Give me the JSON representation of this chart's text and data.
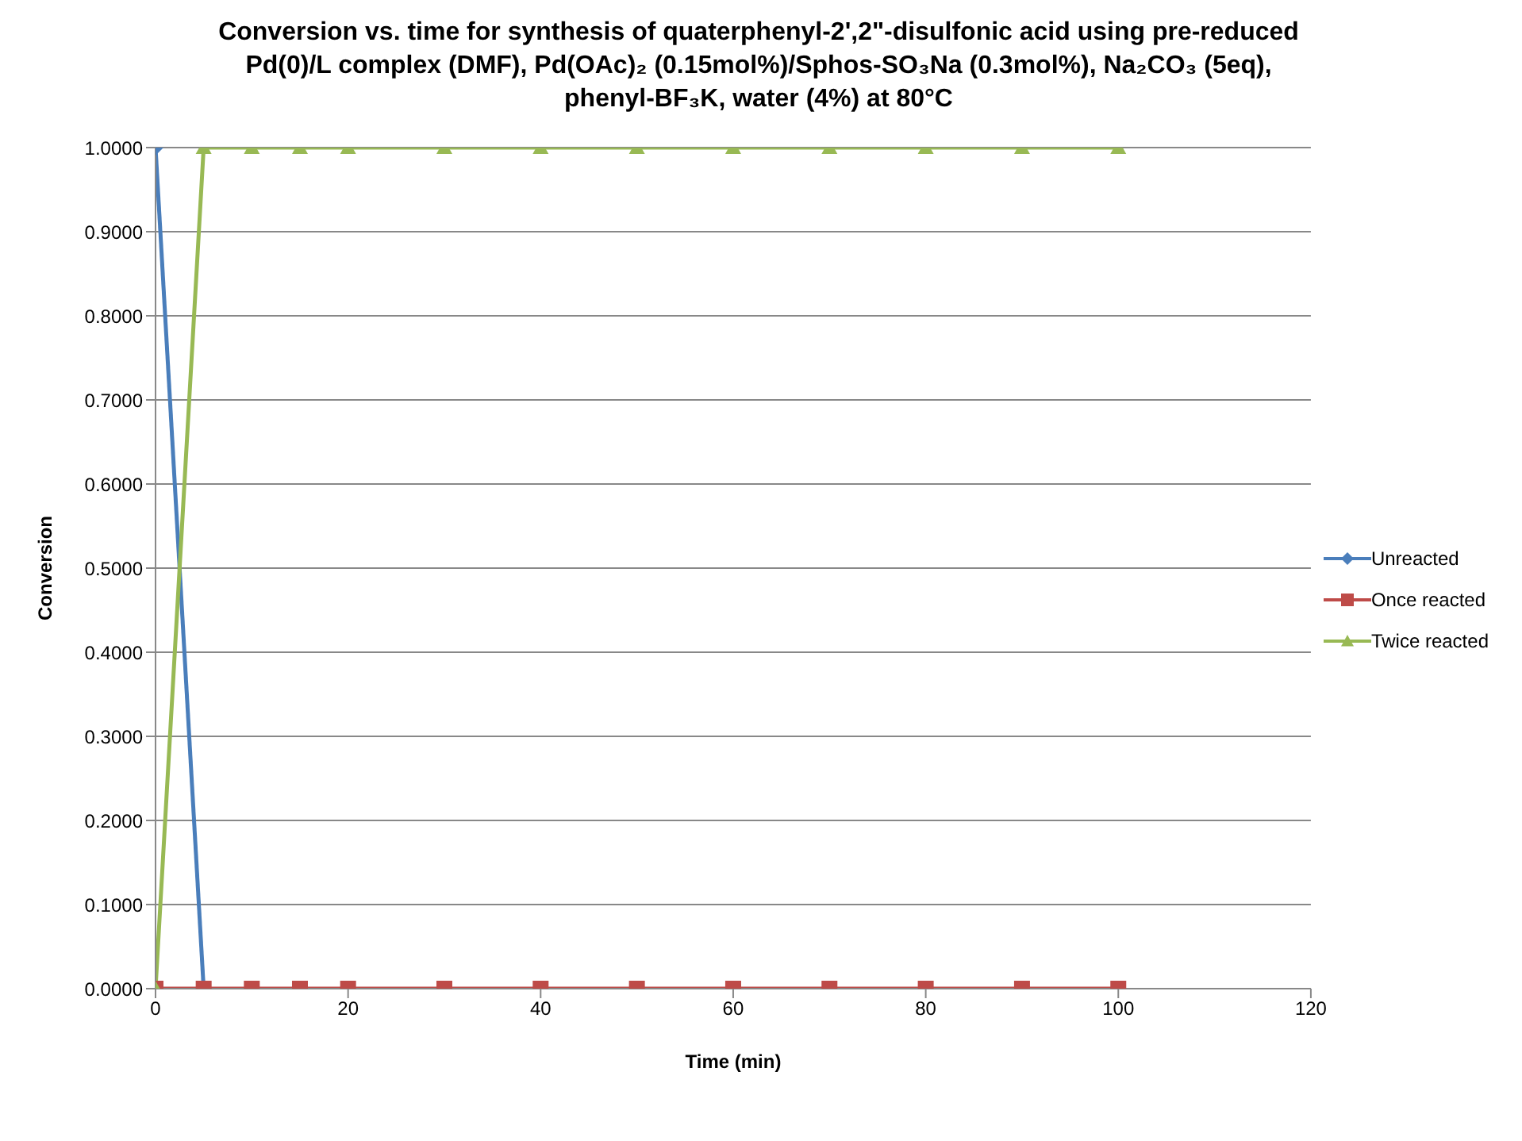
{
  "chart_data": {
    "type": "line",
    "title": "Conversion vs. time for synthesis of quaterphenyl-2',2\"-disulfonic acid using pre-reduced Pd(0)/L complex (DMF), Pd(OAc)₂ (0.15mol%)/Sphos-SO₃Na (0.3mol%), Na₂CO₃ (5eq), phenyl-BF₃K, water (4%) at 80°C",
    "xlabel": "Time (min)",
    "ylabel": "Conversion",
    "x": [
      0,
      5,
      10,
      15,
      20,
      30,
      40,
      50,
      60,
      70,
      80,
      90,
      100
    ],
    "series": [
      {
        "name": "Unreacted",
        "color": "#4a7ebb",
        "marker": "diamond",
        "values": [
          1,
          0,
          null,
          null,
          null,
          null,
          null,
          null,
          null,
          null,
          null,
          null,
          null
        ]
      },
      {
        "name": "Once reacted",
        "color": "#be4b48",
        "marker": "square",
        "values": [
          0,
          0,
          0,
          0,
          0,
          0,
          0,
          0,
          0,
          0,
          0,
          0,
          0
        ]
      },
      {
        "name": "Twice reacted",
        "color": "#98b954",
        "marker": "triangle",
        "values": [
          0,
          1,
          1,
          1,
          1,
          1,
          1,
          1,
          1,
          1,
          1,
          1,
          1
        ]
      }
    ],
    "xlim": [
      0,
      120
    ],
    "xticks": [
      0,
      20,
      40,
      60,
      80,
      100,
      120
    ],
    "ylim": [
      0,
      1
    ],
    "yticks": [
      {
        "value": 0,
        "label": "0.0000"
      },
      {
        "value": 0.1,
        "label": "0.1000"
      },
      {
        "value": 0.2,
        "label": "0.2000"
      },
      {
        "value": 0.3,
        "label": "0.3000"
      },
      {
        "value": 0.4,
        "label": "0.4000"
      },
      {
        "value": 0.5,
        "label": "0.5000"
      },
      {
        "value": 0.6,
        "label": "0.6000"
      },
      {
        "value": 0.7,
        "label": "0.7000"
      },
      {
        "value": 0.8,
        "label": "0.8000"
      },
      {
        "value": 0.9,
        "label": "0.9000"
      },
      {
        "value": 1,
        "label": "1.0000"
      }
    ],
    "grid": "y",
    "legend": "right"
  }
}
